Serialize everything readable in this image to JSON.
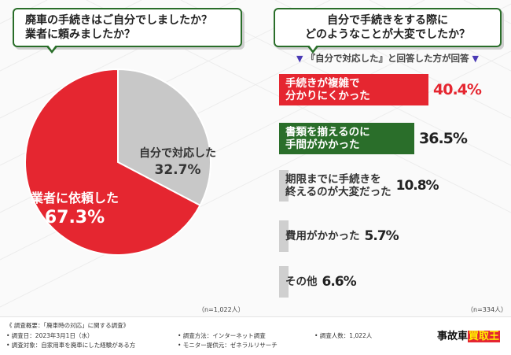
{
  "left": {
    "question": "廃車の手続きはご自分でしましたか？\n業者に頼みましたか？",
    "n_note": "（n=1,022人）"
  },
  "right": {
    "question": "自分で手続きをする際に\nどのようなことが大変でしたか？",
    "subtitle_marker_left": "▼",
    "subtitle_text": "『自分で対応した』と回答した方が回答",
    "subtitle_marker_right": "▼",
    "n_note": "（n=334人）"
  },
  "chart_data": [
    {
      "type": "pie",
      "slices": [
        {
          "label": "業者に依頼した",
          "value": 67.3,
          "display": "67.3%",
          "color": "#e52630"
        },
        {
          "label": "自分で対応した",
          "value": 32.7,
          "display": "32.7%",
          "color": "#c8c8c8"
        }
      ]
    },
    {
      "type": "bar",
      "orientation": "horizontal",
      "categories": [
        "手続きが複雑で\n分かりにくかった",
        "書類を揃えるのに\n手間がかかった",
        "期限までに手続きを\n終えるのが大変だった",
        "費用がかかった",
        "その他"
      ],
      "values": [
        40.4,
        36.5,
        10.8,
        5.7,
        6.6
      ],
      "display": [
        "40.4%",
        "36.5%",
        "10.8%",
        "5.7%",
        "6.6%"
      ],
      "colors": [
        "#e52630",
        "#2a6e2a",
        "#cfcfcf",
        "#cfcfcf",
        "#cfcfcf"
      ]
    }
  ],
  "footer": {
    "overview": "《 調査概要：「廃車時の対応」に関する調査》",
    "date": "• 調査日：2023年3月1日（水）",
    "target": "• 調査対象：自家用車を廃車にした経験がある方",
    "method": "• 調査方法：インターネット調査",
    "provider": "• モニター提供元：ゼネラルリサーチ",
    "count": "• 調査人数：1,022人",
    "logo_part1": "事故車",
    "logo_part2": "買取王"
  }
}
